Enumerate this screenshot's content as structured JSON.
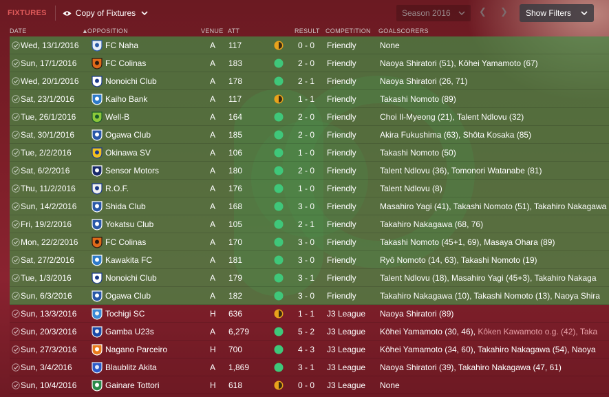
{
  "topbar": {
    "section_label": "FIXTURES",
    "view_name": "Copy of Fixtures",
    "season": "Season 2016",
    "filters_label": "Show Filters"
  },
  "columns": {
    "date": "DATE",
    "opposition": "OPPOSITION",
    "venue": "VENUE",
    "att": "ATT",
    "result": "RESULT",
    "competition": "COMPETITION",
    "goalscorers": "GOALSCORERS"
  },
  "colors": {
    "win": "#3fc77a",
    "draw": "#e8a21c",
    "friendly_row": "#4a8a46",
    "section_label": "#e05a5a"
  },
  "fixtures": [
    {
      "date": "Wed, 13/1/2016",
      "opponent": "FC Naha",
      "crest_icon": "seagull-crest-icon",
      "venue": "A",
      "att": "117",
      "outcome": "draw",
      "score": "0 - 0",
      "competition": "Friendly",
      "scorers": "None",
      "og": ""
    },
    {
      "date": "Sun, 17/1/2016",
      "opponent": "FC Colinas",
      "crest_icon": "orange-crest-icon",
      "venue": "A",
      "att": "183",
      "outcome": "win",
      "score": "2 - 0",
      "competition": "Friendly",
      "scorers": "Naoya Shiratori (51), Kôhei Yamamoto (67)",
      "og": ""
    },
    {
      "date": "Wed, 20/1/2016",
      "opponent": "Nonoichi Club",
      "crest_icon": "ball-crest-icon",
      "venue": "A",
      "att": "178",
      "outcome": "win",
      "score": "2 - 1",
      "competition": "Friendly",
      "scorers": "Naoya Shiratori (26, 71)",
      "og": ""
    },
    {
      "date": "Sat, 23/1/2016",
      "opponent": "Kaiho Bank",
      "crest_icon": "blue-crest-icon",
      "venue": "A",
      "att": "117",
      "outcome": "draw",
      "score": "1 - 1",
      "competition": "Friendly",
      "scorers": "Takashi Nomoto (89)",
      "og": ""
    },
    {
      "date": "Tue, 26/1/2016",
      "opponent": "Well-B",
      "crest_icon": "green-crest-icon",
      "venue": "A",
      "att": "164",
      "outcome": "win",
      "score": "2 - 0",
      "competition": "Friendly",
      "scorers": "Choi Il-Myeong (21), Talent Ndlovu (32)",
      "og": ""
    },
    {
      "date": "Sat, 30/1/2016",
      "opponent": "Ogawa Club",
      "crest_icon": "shield-crest-icon",
      "venue": "A",
      "att": "185",
      "outcome": "win",
      "score": "2 - 0",
      "competition": "Friendly",
      "scorers": "Akira Fukushima (63), Shôta Kosaka (85)",
      "og": ""
    },
    {
      "date": "Tue, 2/2/2016",
      "opponent": "Okinawa SV",
      "crest_icon": "sun-crest-icon",
      "venue": "A",
      "att": "106",
      "outcome": "win",
      "score": "1 - 0",
      "competition": "Friendly",
      "scorers": "Takashi Nomoto (50)",
      "og": ""
    },
    {
      "date": "Sat, 6/2/2016",
      "opponent": "Sensor Motors",
      "crest_icon": "navy-crest-icon",
      "venue": "A",
      "att": "180",
      "outcome": "win",
      "score": "2 - 0",
      "competition": "Friendly",
      "scorers": "Talent Ndlovu (36), Tomonori Watanabe (81)",
      "og": ""
    },
    {
      "date": "Thu, 11/2/2016",
      "opponent": "R.O.F.",
      "crest_icon": "white-crest-icon",
      "venue": "A",
      "att": "176",
      "outcome": "win",
      "score": "1 - 0",
      "competition": "Friendly",
      "scorers": "Talent Ndlovu (8)",
      "og": ""
    },
    {
      "date": "Sun, 14/2/2016",
      "opponent": "Shida Club",
      "crest_icon": "shield-crest-icon",
      "venue": "A",
      "att": "168",
      "outcome": "win",
      "score": "3 - 0",
      "competition": "Friendly",
      "scorers": "Masahiro Yagi (41), Takashi Nomoto (51), Takahiro Nakagawa",
      "og": ""
    },
    {
      "date": "Fri, 19/2/2016",
      "opponent": "Yokatsu Club",
      "crest_icon": "shield-crest-icon",
      "venue": "A",
      "att": "105",
      "outcome": "win",
      "score": "2 - 1",
      "competition": "Friendly",
      "scorers": "Takahiro Nakagawa (68, 76)",
      "og": ""
    },
    {
      "date": "Mon, 22/2/2016",
      "opponent": "FC Colinas",
      "crest_icon": "orange-crest-icon",
      "venue": "A",
      "att": "170",
      "outcome": "win",
      "score": "3 - 0",
      "competition": "Friendly",
      "scorers": "Takashi Nomoto (45+1, 69), Masaya Ohara (89)",
      "og": ""
    },
    {
      "date": "Sat, 27/2/2016",
      "opponent": "Kawakita FC",
      "crest_icon": "blue-crest-icon",
      "venue": "A",
      "att": "181",
      "outcome": "win",
      "score": "3 - 0",
      "competition": "Friendly",
      "scorers": "Ryô Nomoto (14, 63), Takashi Nomoto (19)",
      "og": ""
    },
    {
      "date": "Tue, 1/3/2016",
      "opponent": "Nonoichi Club",
      "crest_icon": "ball-crest-icon",
      "venue": "A",
      "att": "179",
      "outcome": "win",
      "score": "3 - 1",
      "competition": "Friendly",
      "scorers": "Talent Ndlovu (18), Masahiro Yagi (45+3), Takahiro Nakaga",
      "og": ""
    },
    {
      "date": "Sun, 6/3/2016",
      "opponent": "Ogawa Club",
      "crest_icon": "shield-crest-icon",
      "venue": "A",
      "att": "182",
      "outcome": "win",
      "score": "3 - 0",
      "competition": "Friendly",
      "scorers": "Takahiro Nakagawa (10), Takashi Nomoto (13), Naoya Shira",
      "og": ""
    },
    {
      "date": "Sun, 13/3/2016",
      "opponent": "Tochigi SC",
      "crest_icon": "tochigi-crest-icon",
      "venue": "H",
      "att": "636",
      "outcome": "draw",
      "score": "1 - 1",
      "competition": "J3 League",
      "scorers": "Naoya Shiratori (89)",
      "og": ""
    },
    {
      "date": "Sun, 20/3/2016",
      "opponent": "Gamba U23s",
      "crest_icon": "gamba-crest-icon",
      "venue": "A",
      "att": "6,279",
      "outcome": "win",
      "score": "5 - 2",
      "competition": "J3 League",
      "scorers": "Kôhei Yamamoto (30, 46), ",
      "og": "Kôken Kawamoto o.g. (42), Taka"
    },
    {
      "date": "Sun, 27/3/2016",
      "opponent": "Nagano Parceiro",
      "crest_icon": "nagano-crest-icon",
      "venue": "H",
      "att": "700",
      "outcome": "win",
      "score": "4 - 3",
      "competition": "J3 League",
      "scorers": "Kôhei Yamamoto (34, 60), Takahiro Nakagawa (54), Naoya",
      "og": ""
    },
    {
      "date": "Sun, 3/4/2016",
      "opponent": "Blaublitz Akita",
      "crest_icon": "akita-crest-icon",
      "venue": "A",
      "att": "1,869",
      "outcome": "win",
      "score": "3 - 1",
      "competition": "J3 League",
      "scorers": "Naoya Shiratori (39), Takahiro Nakagawa (47, 61)",
      "og": ""
    },
    {
      "date": "Sun, 10/4/2016",
      "opponent": "Gainare Tottori",
      "crest_icon": "tottori-crest-icon",
      "venue": "H",
      "att": "618",
      "outcome": "draw",
      "score": "0 - 0",
      "competition": "J3 League",
      "scorers": "None",
      "og": ""
    }
  ]
}
